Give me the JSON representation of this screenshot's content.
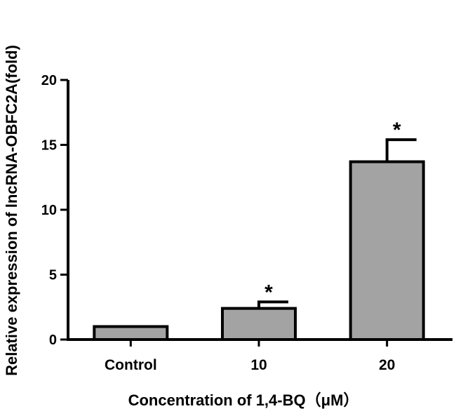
{
  "chart_data": {
    "type": "bar",
    "categories": [
      "Control",
      "10",
      "20"
    ],
    "values": [
      1.0,
      2.4,
      13.7
    ],
    "errors": [
      0,
      0.5,
      1.7
    ],
    "significance": [
      "",
      "*",
      "*"
    ],
    "xlabel": "Concentration of 1,4-BQ（μM）",
    "ylabel": "Relative expression of lncRNA-OBFC2A(fold)",
    "ylim": [
      0,
      20
    ],
    "yticks": [
      0,
      5,
      10,
      15,
      20
    ],
    "bar_color": "#a3a3a3",
    "edge_color": "#000000",
    "grid": false,
    "legend": "none"
  }
}
